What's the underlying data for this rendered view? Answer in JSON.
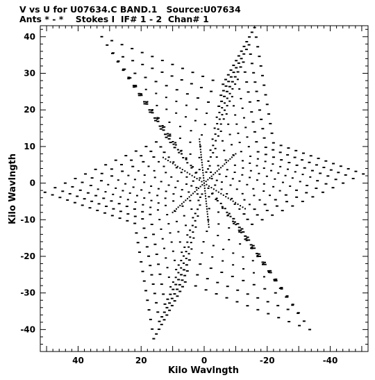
{
  "chart_data": {
    "type": "scatter",
    "title": "V vs U for U07634.C BAND.1   Source:U07634",
    "subtitle": "Ants * - *    Stokes I  IF# 1 - 2  Chan# 1",
    "xlabel": "Kilo Wavlngth",
    "ylabel": "Kilo Wavlngth",
    "xlim": [
      52,
      -52
    ],
    "ylim": [
      -46,
      43
    ],
    "x_reversed": true,
    "xticks": [
      40,
      20,
      0,
      -20,
      -40
    ],
    "xtick_labels": [
      "40",
      "20",
      "0",
      "-20",
      "-40"
    ],
    "yticks": [
      40,
      30,
      20,
      10,
      0,
      -10,
      -20,
      -30,
      -40
    ],
    "ytick_labels": [
      "40",
      "30",
      "20",
      "10",
      "0",
      "-10",
      "-20",
      "-30",
      "-40"
    ],
    "grid": false,
    "legend": "none",
    "marker_color": "#000000",
    "pattern": "six-armed star uv coverage (Y-shaped array, snapshot tracks)",
    "arm_tips_kilowavelength": [
      {
        "u": 32.5,
        "v": 40.0
      },
      {
        "u": -16.0,
        "v": 42.5
      },
      {
        "u": -50.5,
        "v": 2.5
      },
      {
        "u": -33.5,
        "v": -40.0
      },
      {
        "u": 16.0,
        "v": -42.5
      },
      {
        "u": 50.5,
        "v": -2.5
      }
    ],
    "inner_vertices_kilowavelength": [
      {
        "u": 12.0,
        "v": 12.5
      },
      {
        "u": -6.0,
        "v": 27.0
      },
      {
        "u": -22.0,
        "v": 11.0
      },
      {
        "u": -12.0,
        "v": -12.5
      },
      {
        "u": 6.0,
        "v": -27.0
      },
      {
        "u": 22.0,
        "v": -11.0
      }
    ],
    "dense_baselines_kilowavelength": [
      {
        "from": {
          "u": -10.0,
          "v": 8.0
        },
        "to": {
          "u": 10.0,
          "v": -8.0
        }
      },
      {
        "from": {
          "u": 13.0,
          "v": 7.0
        },
        "to": {
          "u": -13.0,
          "v": -7.0
        }
      },
      {
        "from": {
          "u": 1.5,
          "v": 12.0
        },
        "to": {
          "u": -1.5,
          "v": -12.0
        }
      }
    ],
    "points_per_arm_edge": 12
  }
}
